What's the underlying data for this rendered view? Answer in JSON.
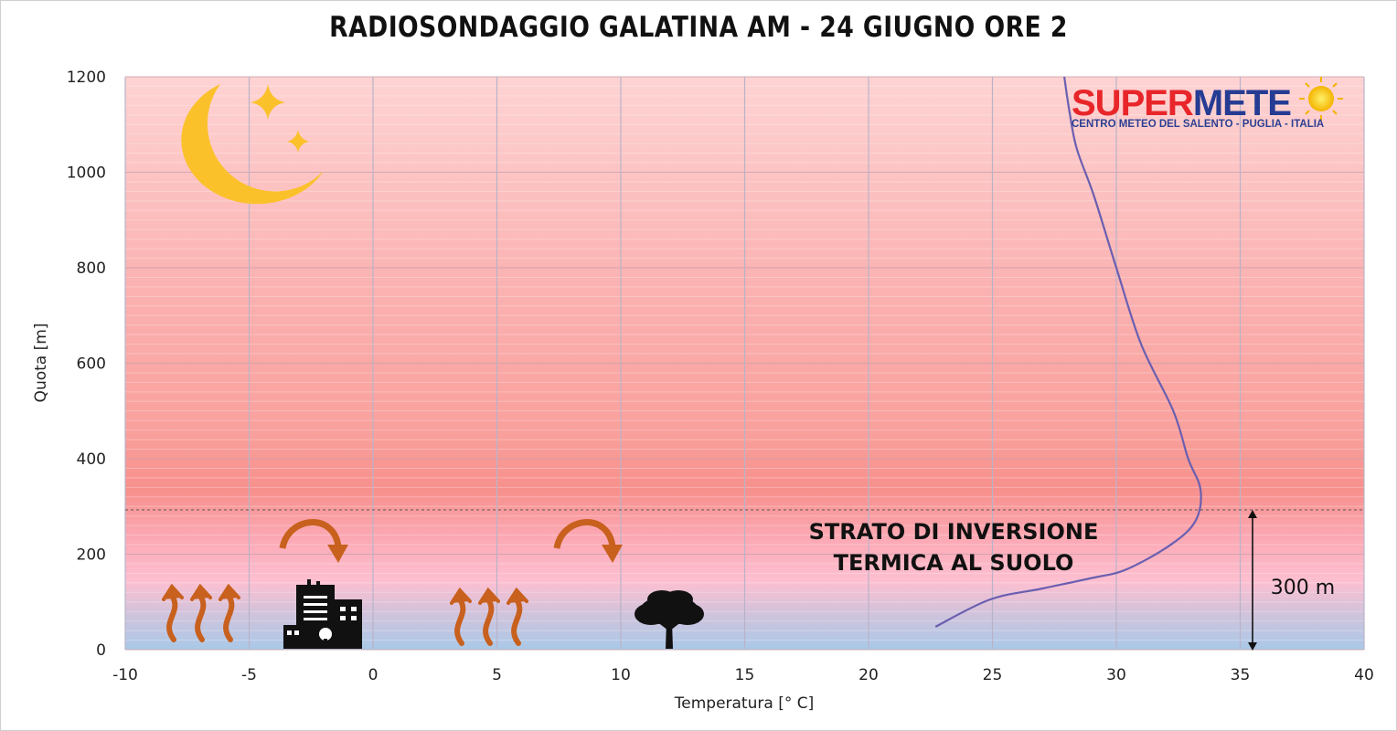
{
  "chart_data": {
    "type": "line",
    "title": "RADIOSONDAGGIO GALATINA AM - 24 GIUGNO ORE 2",
    "xlabel": "Temperatura [° C]",
    "ylabel": "Quota [m]",
    "xlim": [
      -10,
      40
    ],
    "ylim": [
      0,
      1200
    ],
    "x_ticks": [
      "-10",
      "-5",
      "0",
      "5",
      "10",
      "15",
      "20",
      "25",
      "30",
      "35",
      "40"
    ],
    "y_ticks": [
      "0",
      "200",
      "400",
      "600",
      "800",
      "1000",
      "1200"
    ],
    "grid": true,
    "series": [
      {
        "color": "#6a5fb0",
        "x": [
          22.7,
          24.9,
          27.0,
          29.0,
          30.4,
          32.2,
          33.2,
          33.4,
          32.9,
          32.3,
          31.0,
          30.0,
          29.1,
          28.4,
          28.1,
          27.9
        ],
        "y": [
          48,
          105,
          128,
          150,
          168,
          220,
          270,
          335,
          400,
          500,
          640,
          800,
          950,
          1050,
          1130,
          1200
        ]
      }
    ],
    "reference_line": {
      "y": 295,
      "style": "dashed"
    },
    "annotations": {
      "inversion_line1": "STRATO DI INVERSIONE",
      "inversion_line2": "TERMICA AL SUOLO",
      "height_label": "300 m"
    },
    "background_gradient": [
      "#fed0d0",
      "#f89a95",
      "#fdb6c8",
      "#a9c8e8"
    ]
  },
  "logo": {
    "part1": "SUPER",
    "part2": "METE",
    "subtitle": "CENTRO METEO DEL SALENTO - PUGLIA - ITALIA",
    "color1": "#e8262a",
    "color2": "#263c93"
  },
  "icons": [
    "moon-icon",
    "star-icon",
    "star-icon",
    "heat-arrows-icon",
    "building-icon",
    "heat-arrows-icon",
    "tree-icon",
    "curved-arrow-icon",
    "curved-arrow-icon",
    "sun-icon"
  ],
  "colors": {
    "icon_orange": "#c8601e",
    "moon_yellow": "#fbc12b",
    "curve": "#6a5fb0"
  }
}
